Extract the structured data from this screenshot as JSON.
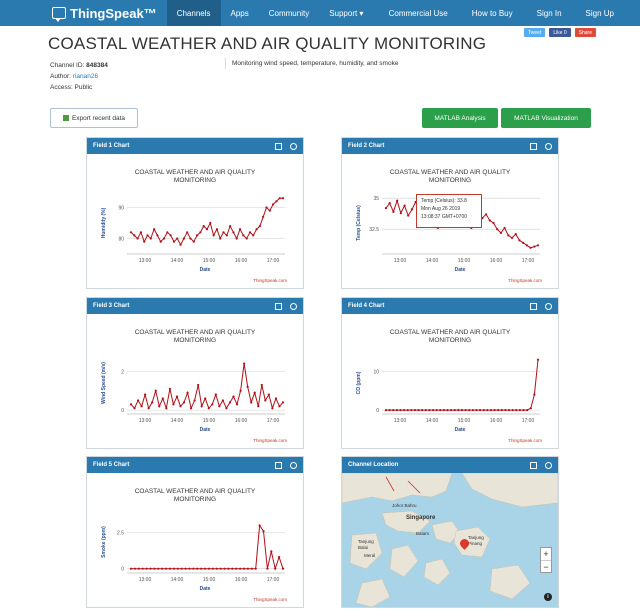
{
  "navbar": {
    "brand": "ThingSpeak™",
    "left_items": [
      "Channels",
      "Apps",
      "Community",
      "Support ▾"
    ],
    "right_items": [
      "Commercial Use",
      "How to Buy",
      "Sign In",
      "Sign Up"
    ]
  },
  "page": {
    "title": "COASTAL WEATHER AND AIR QUALITY MONITORING",
    "social": [
      "Tweet",
      "Like 0",
      "Share"
    ],
    "channel_id_label": "Channel ID: ",
    "channel_id": "848384",
    "author_label": "Author: ",
    "author": "rianan26",
    "access": "Access: Public",
    "description": "Monitoring wind speed, temperature, humidity, and smoke"
  },
  "buttons": {
    "export": "Export recent data",
    "matlab_analysis": "MATLAB Analysis",
    "matlab_visualization": "MATLAB Visualization"
  },
  "panels": {
    "p1": "Field 1 Chart",
    "p2": "Field 2 Chart",
    "p3": "Field 3 Chart",
    "p4": "Field 4 Chart",
    "p5": "Field 5 Chart",
    "p6": "Channel Location"
  },
  "tooltip": {
    "line1": "Temp (Celsius): 33.8",
    "line2": "Mon Aug 26 2019",
    "line3": "13:08:37 GMT+0700"
  },
  "map": {
    "labels": [
      "Johor Bahru",
      "Singapore",
      "Batam",
      "Tanjung Balai",
      "Meral",
      "Tanjung Pinang"
    ],
    "zoom_in": "+",
    "zoom_out": "−",
    "info": "i"
  },
  "chart_data": [
    {
      "type": "line",
      "title": "COASTAL WEATHER AND AIR QUALITY MONITORING",
      "xlabel": "Date",
      "ylabel": "Humidity (%)",
      "credit": "ThingSpeak.com",
      "x_ticks": [
        "13:00",
        "14:00",
        "15:00",
        "16:00",
        "17:00"
      ],
      "y_ticks": [
        80,
        90
      ],
      "ylim": [
        75,
        95
      ],
      "grid": true,
      "values": [
        82,
        81,
        80,
        82,
        79,
        81,
        80,
        83,
        81,
        79,
        80,
        82,
        81,
        79,
        80,
        78,
        80,
        82,
        80,
        79,
        81,
        82,
        84,
        83,
        85,
        81,
        83,
        80,
        82,
        81,
        84,
        82,
        80,
        83,
        81,
        80,
        82,
        81,
        83,
        84,
        87,
        90,
        89,
        91,
        92,
        93,
        93
      ]
    },
    {
      "type": "line",
      "title": "COASTAL WEATHER AND AIR QUALITY MONITORING",
      "xlabel": "Date",
      "ylabel": "Temp (Celsius)",
      "credit": "ThingSpeak.com",
      "x_ticks": [
        "13:00",
        "14:00",
        "15:00",
        "16:00",
        "17:00"
      ],
      "y_ticks": [
        32.5,
        35
      ],
      "ylim": [
        30.5,
        35.5
      ],
      "grid": true,
      "values": [
        34.2,
        34.6,
        33.9,
        34.8,
        33.8,
        34.4,
        33.6,
        34.1,
        34.7,
        33.9,
        33.2,
        33.5,
        32.9,
        33.1,
        32.6,
        32.8,
        33.0,
        32.7,
        33.1,
        32.9,
        33.3,
        32.8,
        33.0,
        32.6,
        33.1,
        32.9,
        33.4,
        33.7,
        33.2,
        33.0,
        32.5,
        32.2,
        32.6,
        32.0,
        31.8,
        32.1,
        31.6,
        31.4,
        31.2,
        31.0,
        31.1,
        31.2
      ]
    },
    {
      "type": "line",
      "title": "COASTAL WEATHER AND AIR QUALITY MONITORING",
      "xlabel": "Date",
      "ylabel": "Wind Speed (m/s)",
      "credit": "ThingSpeak.com",
      "x_ticks": [
        "13:00",
        "14:00",
        "15:00",
        "16:00",
        "17:00"
      ],
      "y_ticks": [
        0,
        2
      ],
      "ylim": [
        -0.2,
        3
      ],
      "grid": true,
      "values": [
        0.3,
        0.1,
        0.5,
        0.2,
        0.8,
        0.1,
        0.4,
        1.0,
        0.2,
        0.6,
        0.1,
        1.1,
        0.3,
        0.7,
        0.2,
        0.4,
        0.9,
        0.1,
        0.5,
        1.3,
        0.2,
        0.6,
        0.1,
        0.3,
        0.8,
        0.2,
        0.5,
        0.1,
        0.4,
        0.7,
        0.3,
        1.0,
        2.4,
        1.2,
        0.4,
        0.9,
        0.2,
        1.3,
        0.5,
        0.8,
        0.1,
        0.6,
        0.2,
        0.4
      ]
    },
    {
      "type": "line",
      "title": "COASTAL WEATHER AND AIR QUALITY MONITORING",
      "xlabel": "Date",
      "ylabel": "CO (ppm)",
      "credit": "ThingSpeak.com",
      "x_ticks": [
        "13:00",
        "14:00",
        "15:00",
        "16:00",
        "17:00"
      ],
      "y_ticks": [
        0,
        10
      ],
      "ylim": [
        -1,
        15
      ],
      "grid": true,
      "values": [
        0,
        0,
        0,
        0,
        0,
        0,
        0,
        0,
        0,
        0,
        0,
        0,
        0,
        0,
        0,
        0,
        0,
        0,
        0,
        0,
        0,
        0,
        0,
        0,
        0,
        0,
        0,
        0,
        0,
        0,
        0,
        0,
        0,
        0,
        0,
        0,
        0,
        0,
        0,
        0,
        0.5,
        4,
        13
      ]
    },
    {
      "type": "line",
      "title": "COASTAL WEATHER AND AIR QUALITY MONITORING",
      "xlabel": "Date",
      "ylabel": "Smoke (ppm)",
      "credit": "ThingSpeak.com",
      "x_ticks": [
        "13:00",
        "14:00",
        "15:00",
        "16:00",
        "17:00"
      ],
      "y_ticks": [
        0,
        2.5
      ],
      "ylim": [
        -0.3,
        4
      ],
      "grid": true,
      "values": [
        0,
        0,
        0,
        0,
        0,
        0,
        0,
        0,
        0,
        0,
        0,
        0,
        0,
        0,
        0,
        0,
        0,
        0,
        0,
        0,
        0,
        0,
        0,
        0,
        0,
        0,
        0,
        0,
        0,
        0,
        0,
        0,
        0,
        3.0,
        2.6,
        0,
        1.2,
        0,
        0.8,
        0
      ]
    }
  ]
}
